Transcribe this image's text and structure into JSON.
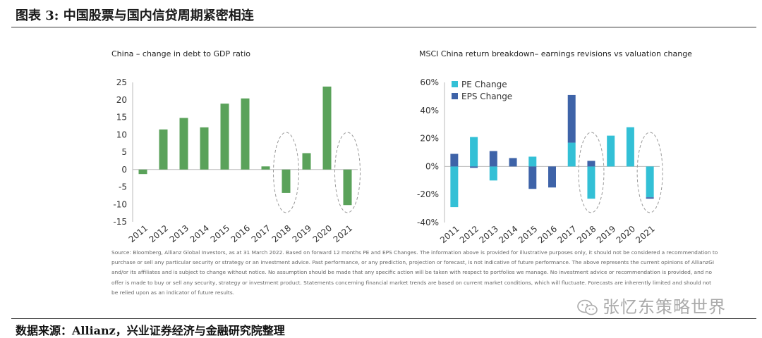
{
  "figure_title": "图表 3:   中国股票与国内信贷周期紧密相连",
  "source_line": "数据来源：Allianz，兴业证券经济与金融研究院整理",
  "watermark": "张忆东策略世界",
  "colors": {
    "green": "#5aa25a",
    "pe": "#33c0d6",
    "eps": "#3e63a8",
    "highlight": "#999999"
  },
  "note": "Source: Bloomberg, Allianz Global Investors, as at 31 March 2022. Based on forward 12 months PE and EPS Changes. The information above is provided for illustrative purposes only, it should not be considered a recommendation to purchase or sell any particular security or strategy or an investment advice. Past performance, or any prediction, projection or forecast, is not indicative of future performance. The above represents the current opinions of AllianzGI and/or its affiliates and is subject to change without notice. No assumption should be made that any specific action will be taken with respect to portfolios we manage. No investment advice or recommendation is provided, and no offer is made to buy or sell any security, strategy or investment product. Statements concerning financial market trends are based on current market conditions, which will fluctuate. Forecasts are inherently limited and should not be relied upon as an indicator of future results.",
  "chart_data": [
    {
      "type": "bar",
      "title": "China – change in debt to GDP ratio",
      "categories": [
        "2011",
        "2012",
        "2013",
        "2014",
        "2015",
        "2016",
        "2017",
        "2018",
        "2019",
        "2020",
        "2021"
      ],
      "values": [
        -1.3,
        11.5,
        14.8,
        12.1,
        18.9,
        20.4,
        0.9,
        -6.7,
        4.7,
        23.8,
        -10.2
      ],
      "ylim": [
        -15,
        25
      ],
      "yticks": [
        -15,
        -10,
        -5,
        0,
        5,
        10,
        15,
        20,
        25
      ],
      "highlighted": [
        "2018",
        "2021"
      ],
      "grid": false,
      "legend": "none"
    },
    {
      "type": "bar",
      "title": "MSCI China return breakdown– earnings revisions vs valuation change",
      "categories": [
        "2011",
        "2012",
        "2013",
        "2014",
        "2015",
        "2016",
        "2017",
        "2018",
        "2019",
        "2020",
        "2021"
      ],
      "series": [
        {
          "name": "PE Change",
          "values": [
            -29,
            21,
            -10,
            0,
            7,
            0,
            17,
            -23,
            22,
            28,
            -22
          ]
        },
        {
          "name": "EPS Change",
          "values": [
            9,
            -1,
            11,
            6,
            -16,
            -15,
            34,
            4,
            0,
            0,
            -1
          ]
        }
      ],
      "stacked": true,
      "ylim": [
        -40,
        60
      ],
      "yticks": [
        -40,
        -20,
        0,
        20,
        40,
        60
      ],
      "ytick_labels": [
        "-40%",
        "-20%",
        "0%",
        "20%",
        "40%",
        "60%"
      ],
      "highlighted": [
        "2018",
        "2021"
      ],
      "grid": false,
      "legend": "top-left"
    }
  ]
}
